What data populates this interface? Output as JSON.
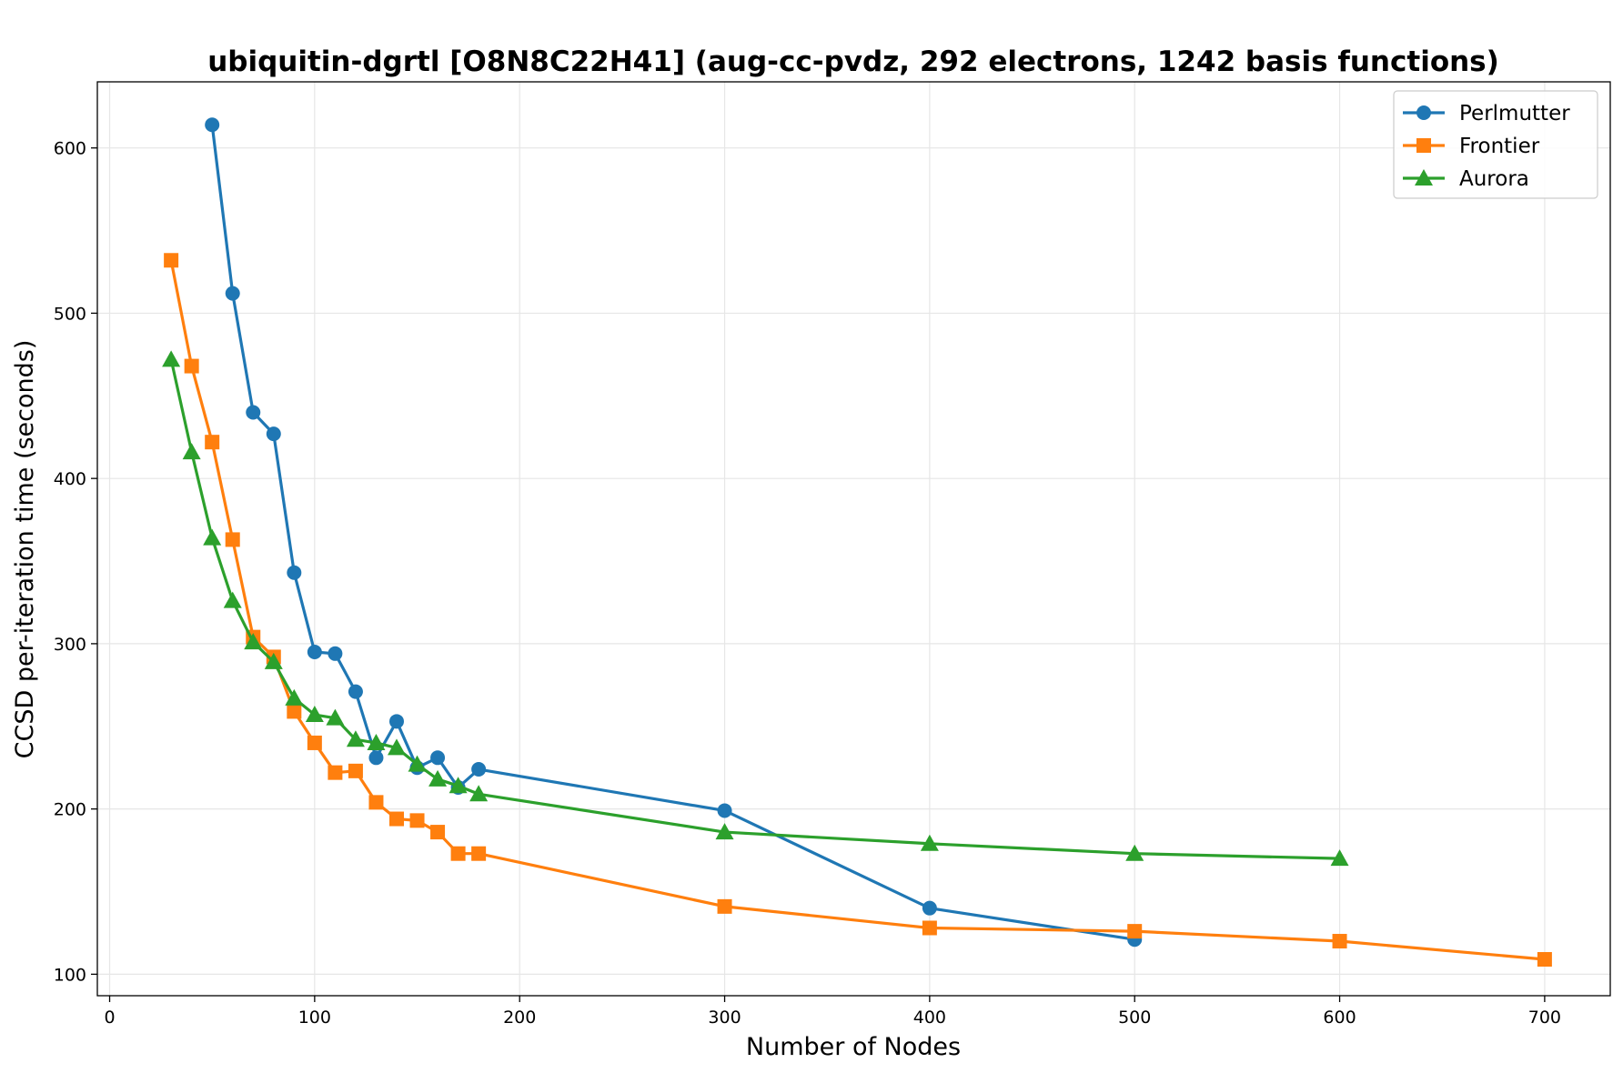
{
  "chart_data": {
    "type": "line",
    "title": "ubiquitin-dgrtl [O8N8C22H41] (aug-cc-pvdz, 292 electrons, 1242 basis functions)",
    "xlabel": "Number of Nodes",
    "ylabel": "CCSD per-iteration time (seconds)",
    "xlim": [
      -6,
      732
    ],
    "ylim": [
      87,
      640
    ],
    "xticks": [
      0,
      100,
      200,
      300,
      400,
      500,
      600,
      700
    ],
    "yticks": [
      100,
      200,
      300,
      400,
      500,
      600
    ],
    "grid": true,
    "legend_position": "top-right",
    "series": [
      {
        "name": "Perlmutter",
        "color": "#1f77b4",
        "marker": "circle",
        "x": [
          50,
          60,
          70,
          80,
          90,
          100,
          110,
          120,
          130,
          140,
          150,
          160,
          170,
          180,
          300,
          400,
          500
        ],
        "y": [
          614,
          512,
          440,
          427,
          343,
          295,
          294,
          271,
          231,
          253,
          225,
          231,
          213,
          224,
          199,
          140,
          121
        ]
      },
      {
        "name": "Frontier",
        "color": "#ff7f0e",
        "marker": "square",
        "x": [
          30,
          40,
          50,
          60,
          70,
          80,
          90,
          100,
          110,
          120,
          130,
          140,
          150,
          160,
          170,
          180,
          300,
          400,
          500,
          600,
          700
        ],
        "y": [
          532,
          468,
          422,
          363,
          304,
          292,
          259,
          240,
          222,
          223,
          204,
          194,
          193,
          186,
          173,
          173,
          141,
          128,
          126,
          120,
          109
        ]
      },
      {
        "name": "Aurora",
        "color": "#2ca02c",
        "marker": "triangle",
        "x": [
          30,
          40,
          50,
          60,
          70,
          80,
          90,
          100,
          110,
          120,
          130,
          140,
          150,
          160,
          170,
          180,
          300,
          400,
          500,
          600
        ],
        "y": [
          472,
          416,
          364,
          326,
          301,
          289,
          267,
          257,
          255,
          242,
          240,
          237,
          227,
          218,
          214,
          209,
          186,
          179,
          173,
          170
        ]
      }
    ]
  }
}
